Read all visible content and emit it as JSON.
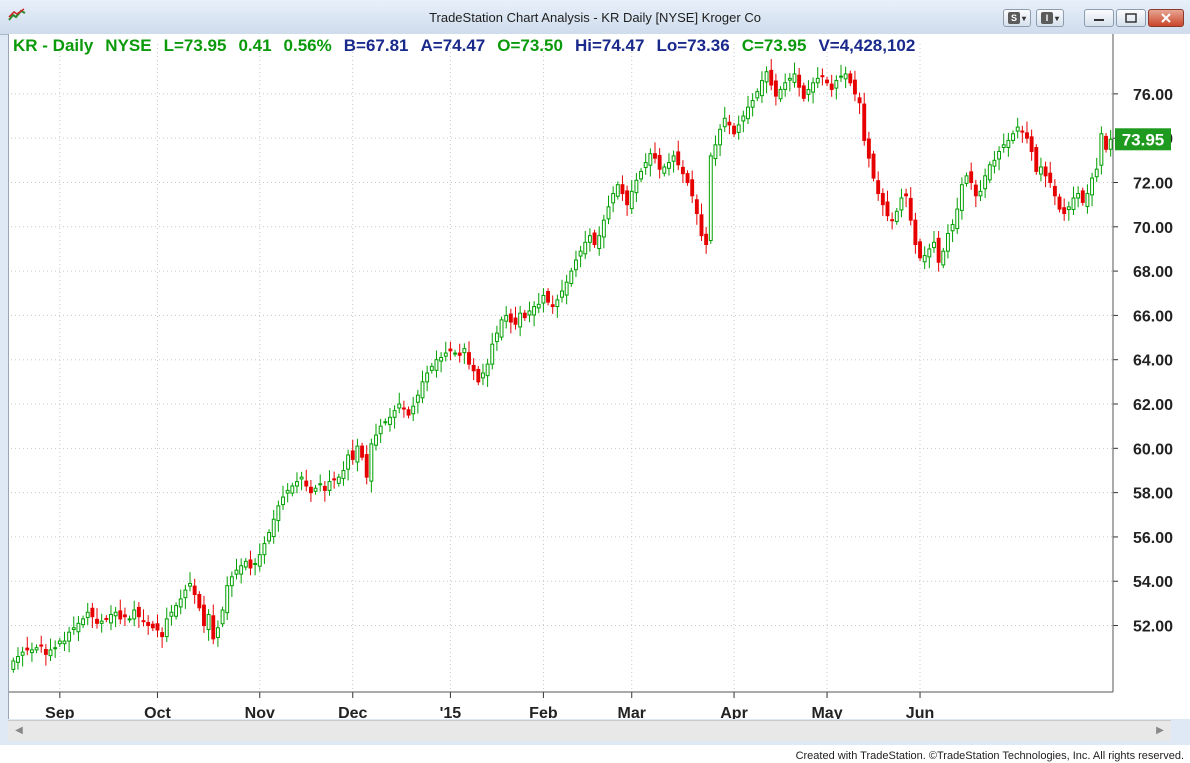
{
  "window": {
    "title": "TradeStation Chart Analysis - KR Daily [NYSE] Kroger Co",
    "buttons": {
      "s_label": "S",
      "i_label": "I"
    }
  },
  "status": {
    "symbol": "KR - Daily",
    "exchange": "NYSE",
    "last": "L=73.95",
    "change": "0.41",
    "change_pct": "0.56%",
    "bid": "B=67.81",
    "ask": "A=74.47",
    "open": "O=73.50",
    "high": "Hi=74.47",
    "low": "Lo=73.36",
    "close": "C=73.95",
    "volume": "V=4,428,102"
  },
  "footer": {
    "copyright": "Created with TradeStation. ©TradeStation Technologies, Inc. All rights reserved."
  },
  "colors": {
    "up": "#00a000",
    "down": "#e60000",
    "grid": "#c8c8c8",
    "price_tag_bg": "#1e9a1e"
  },
  "chart_data": {
    "type": "candlestick",
    "symbol": "KR",
    "interval": "Daily",
    "y_range": [
      49.0,
      77.8
    ],
    "y_ticks": [
      "52.00",
      "54.00",
      "56.00",
      "58.00",
      "60.00",
      "62.00",
      "64.00",
      "66.00",
      "68.00",
      "70.00",
      "72.00",
      "74.00",
      "76.00"
    ],
    "y_tick_values": [
      52,
      54,
      56,
      58,
      60,
      62,
      64,
      66,
      68,
      70,
      72,
      74,
      76
    ],
    "x_labels": [
      {
        "label": "Sep",
        "bar": 10
      },
      {
        "label": "Oct",
        "bar": 31
      },
      {
        "label": "Nov",
        "bar": 53
      },
      {
        "label": "Dec",
        "bar": 73
      },
      {
        "label": "'15",
        "bar": 94
      },
      {
        "label": "Feb",
        "bar": 114
      },
      {
        "label": "Mar",
        "bar": 133
      },
      {
        "label": "Apr",
        "bar": 155
      },
      {
        "label": "May",
        "bar": 175
      },
      {
        "label": "Jun",
        "bar": 195
      }
    ],
    "last_price_label": "73.95",
    "last_price": 73.95,
    "closes": [
      50.4,
      50.6,
      50.8,
      50.9,
      50.9,
      51.0,
      51.1,
      50.7,
      50.9,
      51.0,
      51.3,
      51.3,
      51.7,
      51.9,
      52.1,
      52.3,
      52.6,
      52.4,
      52.1,
      52.2,
      52.3,
      52.5,
      52.6,
      52.3,
      52.4,
      52.3,
      52.7,
      52.4,
      52.2,
      52.0,
      51.9,
      51.8,
      51.5,
      52.3,
      52.6,
      52.9,
      53.2,
      53.6,
      53.9,
      53.4,
      52.8,
      52.0,
      52.5,
      51.4,
      51.9,
      52.7,
      53.8,
      54.2,
      54.5,
      54.7,
      54.9,
      54.6,
      54.8,
      55.2,
      55.7,
      56.2,
      56.8,
      57.4,
      57.8,
      58.1,
      58.3,
      58.5,
      58.7,
      58.3,
      58.0,
      58.2,
      58.4,
      58.1,
      58.5,
      58.6,
      58.7,
      59.0,
      59.7,
      59.5,
      60.1,
      59.6,
      58.7,
      60.2,
      60.6,
      61.0,
      61.2,
      61.4,
      61.7,
      62.0,
      61.8,
      61.5,
      61.9,
      62.4,
      63.0,
      63.4,
      63.7,
      64.0,
      64.1,
      64.3,
      64.4,
      64.3,
      64.2,
      64.5,
      63.8,
      63.5,
      63.0,
      63.4,
      63.8,
      64.7,
      65.2,
      65.8,
      66.0,
      65.7,
      65.6,
      66.1,
      65.9,
      66.2,
      66.4,
      66.5,
      66.9,
      66.6,
      66.4,
      66.7,
      67.1,
      67.5,
      68.0,
      68.5,
      68.9,
      69.3,
      69.6,
      69.2,
      69.6,
      70.3,
      70.9,
      71.5,
      71.9,
      71.5,
      71.0,
      71.6,
      72.1,
      72.5,
      72.9,
      73.3,
      73.1,
      72.6,
      72.7,
      72.9,
      73.2,
      72.8,
      72.4,
      72.0,
      71.4,
      70.6,
      69.6,
      69.2,
      73.2,
      73.7,
      74.4,
      74.9,
      74.6,
      74.2,
      74.6,
      75.0,
      75.4,
      75.7,
      76.1,
      76.6,
      77.0,
      76.4,
      75.9,
      76.2,
      76.5,
      76.7,
      76.9,
      76.3,
      75.8,
      76.2,
      76.5,
      76.7,
      76.8,
      76.5,
      76.2,
      76.6,
      76.8,
      76.9,
      76.5,
      76.0,
      75.6,
      73.9,
      73.1,
      72.2,
      71.5,
      71.0,
      70.5,
      70.3,
      70.7,
      71.3,
      71.4,
      70.3,
      69.2,
      68.6,
      68.7,
      69.0,
      69.3,
      68.4,
      68.9,
      69.7,
      70.1,
      70.8,
      71.9,
      72.3,
      72.0,
      71.4,
      71.6,
      72.3,
      72.8,
      73.0,
      73.4,
      73.7,
      73.9,
      74.2,
      74.5,
      74.3,
      74.0,
      73.4,
      72.5,
      72.7,
      72.3,
      72.0,
      71.4,
      70.8,
      70.6,
      70.9,
      71.3,
      71.5,
      71.1,
      71.5,
      72.2,
      72.6,
      74.2,
      73.5,
      73.95
    ]
  }
}
